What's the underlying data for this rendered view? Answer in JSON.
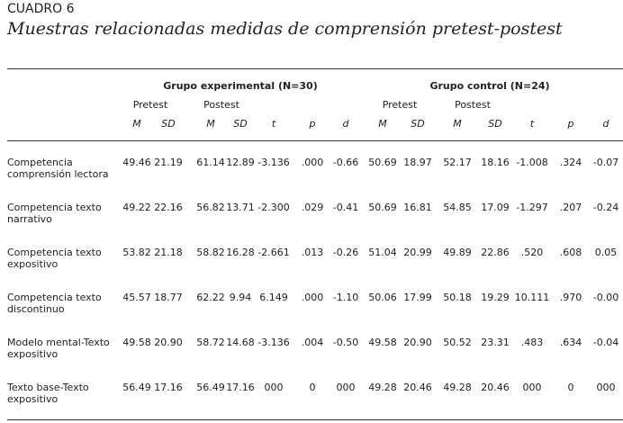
{
  "header": {
    "label": "CUADRO 6",
    "title": "Muestras relacionadas medidas de comprensión pretest-postest"
  },
  "table": {
    "groups": [
      "Grupo experimental (N=30)",
      "Grupo control (N=24)"
    ],
    "phases": [
      "Pretest",
      "Postest",
      "Pretest",
      "Postest"
    ],
    "columns": [
      "M",
      "SD",
      "M",
      "SD",
      "t",
      "p",
      "d",
      "M",
      "SD",
      "M",
      "SD",
      "t",
      "p",
      "d"
    ],
    "rows": [
      [
        "Competencia comprensión lectora",
        "49.46",
        "21.19",
        "61.14",
        "12.89",
        "-3.136",
        ".000",
        "-0.66",
        "50.69",
        "18.97",
        "52.17",
        "18.16",
        "-1.008",
        ".324",
        "-0.07"
      ],
      [
        "Competencia texto narrativo",
        "49.22",
        "22.16",
        "56.82",
        "13.71",
        "-2.300",
        ".029",
        "-0.41",
        "50.69",
        "16.81",
        "54.85",
        "17.09",
        "-1.297",
        ".207",
        "-0.24"
      ],
      [
        "Competencia texto expositivo",
        "53.82",
        "21.18",
        "58.82",
        "16.28",
        "-2.661",
        ".013",
        "-0.26",
        "51.04",
        "20.99",
        "49.89",
        "22.86",
        ".520",
        ".608",
        "0.05"
      ],
      [
        "Competencia texto discontinuo",
        "45.57",
        "18.77",
        "62.22",
        "9.94",
        "6.149",
        ".000",
        "-1.10",
        "50.06",
        "17.99",
        "50.18",
        "19.29",
        "10.111",
        ".970",
        "-0.00"
      ],
      [
        "Modelo mental-Texto expositivo",
        "49.58",
        "20.90",
        "58.72",
        "14.68",
        "-3.136",
        ".004",
        "-0.50",
        "49.58",
        "20.90",
        "50.52",
        "23.31",
        ".483",
        ".634",
        "-0.04"
      ],
      [
        "Texto base-Texto expositivo",
        "56.49",
        "17.16",
        "56.49",
        "17.16",
        "000",
        "0",
        "000",
        "49.28",
        "20.46",
        "49.28",
        "20.46",
        "000",
        "0",
        "000"
      ]
    ]
  }
}
